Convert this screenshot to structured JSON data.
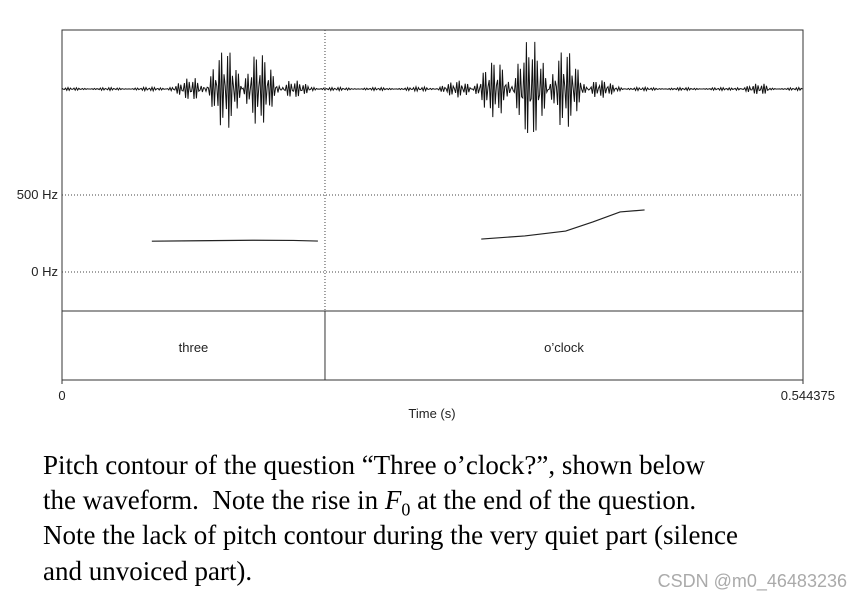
{
  "chart_data": {
    "type": "line",
    "x": [
      0.066,
      0.1,
      0.14,
      0.17,
      0.188,
      0.25,
      0.308,
      0.34,
      0.37,
      0.39,
      0.41,
      0.428
    ],
    "series": [
      {
        "color": "#222222",
        "values": [
          200,
          203,
          206,
          205,
          201,
          null,
          214,
          234,
          266,
          325,
          390,
          403
        ]
      }
    ],
    "xlim": [
      0,
      0.544375
    ],
    "xticks": [
      0,
      0.544375
    ],
    "xlabel": "Time (s)",
    "ylim": [
      0,
      500
    ],
    "yticks": [
      {
        "value": 0,
        "label": "0 Hz"
      },
      {
        "value": 500,
        "label": "500 Hz"
      }
    ],
    "tier": {
      "boundary": 0.1932,
      "labels": [
        "three",
        "o’clock"
      ]
    }
  },
  "caption": {
    "line1": "Pitch contour of the question “Three o’clock?”, shown below",
    "line2": [
      "the waveform.  Note the rise in ",
      "F",
      "0",
      " at the end of the question."
    ],
    "line3": "Note the lack of pitch contour during the very quiet part (silence",
    "line4": "and unvoiced part)."
  },
  "watermark": "CSDN @m0_46483236"
}
